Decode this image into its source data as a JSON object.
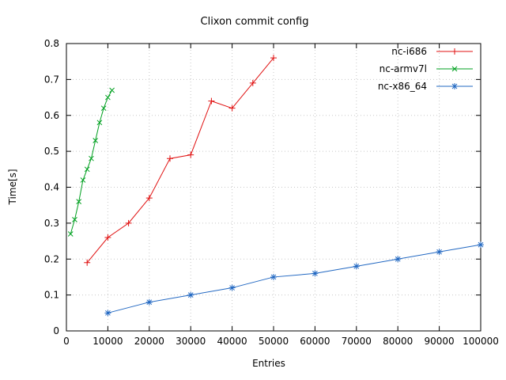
{
  "chart_data": {
    "type": "line",
    "title": "Clixon commit config",
    "xlabel": "Entries",
    "ylabel": "Time[s]",
    "xlim": [
      0,
      100000
    ],
    "ylim": [
      0,
      0.8
    ],
    "grid": true,
    "legend_position": "top-right-inside",
    "xticks": [
      0,
      10000,
      20000,
      30000,
      40000,
      50000,
      60000,
      70000,
      80000,
      90000,
      100000
    ],
    "xtick_labels": [
      "0",
      "10000",
      "20000",
      "30000",
      "40000",
      "50000",
      "60000",
      "70000",
      "80000",
      "90000",
      "100000"
    ],
    "yticks": [
      0,
      0.1,
      0.2,
      0.3,
      0.4,
      0.5,
      0.6,
      0.7,
      0.8
    ],
    "ytick_labels": [
      "0",
      "0.1",
      "0.2",
      "0.3",
      "0.4",
      "0.5",
      "0.6",
      "0.7",
      "0.8"
    ],
    "colors": {
      "grid": "#c8c8c8",
      "axis": "#000000",
      "background": "#ffffff"
    },
    "series": [
      {
        "name": "nc-i686",
        "color": "#e01010",
        "marker": "plus",
        "x": [
          5000,
          10000,
          15000,
          20000,
          25000,
          30000,
          35000,
          40000,
          45000,
          50000
        ],
        "y": [
          0.19,
          0.26,
          0.3,
          0.37,
          0.48,
          0.49,
          0.64,
          0.62,
          0.69,
          0.76
        ]
      },
      {
        "name": "nc-armv7l",
        "color": "#00a020",
        "marker": "cross",
        "x": [
          1000,
          2000,
          3000,
          4000,
          5000,
          6000,
          7000,
          8000,
          9000,
          10000,
          11000
        ],
        "y": [
          0.27,
          0.31,
          0.36,
          0.42,
          0.45,
          0.48,
          0.53,
          0.58,
          0.62,
          0.65,
          0.67
        ]
      },
      {
        "name": "nc-x86_64",
        "color": "#2268c2",
        "marker": "star",
        "x": [
          10000,
          20000,
          30000,
          40000,
          50000,
          60000,
          70000,
          80000,
          90000,
          100000
        ],
        "y": [
          0.05,
          0.08,
          0.1,
          0.12,
          0.15,
          0.16,
          0.18,
          0.2,
          0.22,
          0.24
        ]
      }
    ]
  }
}
